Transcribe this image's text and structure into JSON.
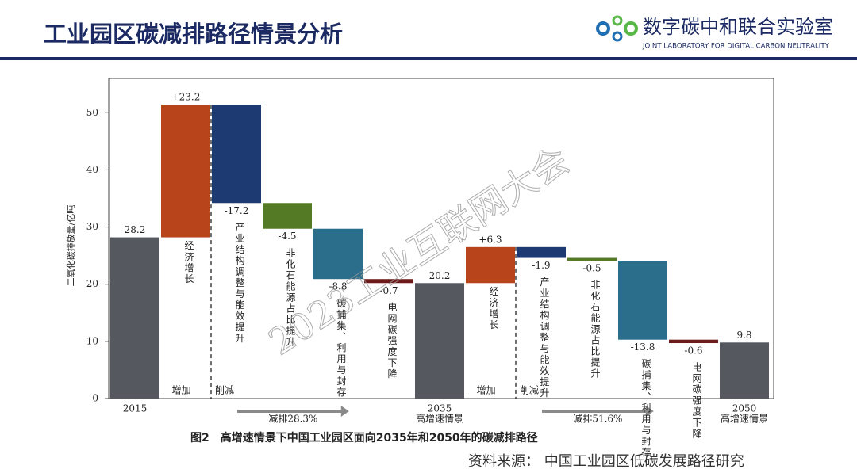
{
  "header": {
    "title": "工业园区碳减排路径情景分析",
    "logo_name": "数字碳中和联合实验室",
    "logo_subtitle": "JOINT LABORATORY FOR DIGITAL CARBON NEUTRALITY"
  },
  "chart_data": {
    "type": "waterfall",
    "y_label": "二氧化碳排放量/亿吨",
    "categories": [
      "2015",
      "经济增长",
      "产业结构调整与能效提升",
      "非化石能源占比提升",
      "碳捕集、利用与封存",
      "电网碳强度下降",
      "2035",
      "经济增长",
      "产业结构调整与能效提升",
      "非化石能源占比提升",
      "碳捕集、利用与封存",
      "电网碳强度下降",
      "2050"
    ],
    "measure": [
      "total",
      "relative",
      "relative",
      "relative",
      "relative",
      "relative",
      "total",
      "relative",
      "relative",
      "relative",
      "relative",
      "relative",
      "total"
    ],
    "values": [
      28.2,
      23.2,
      -17.2,
      -4.5,
      -8.8,
      -0.7,
      20.2,
      6.3,
      -1.9,
      -0.5,
      -13.8,
      -0.6,
      9.8
    ],
    "value_labels": [
      "28.2",
      "+23.2",
      "-17.2",
      "-4.5",
      "-8.8",
      "-0.7",
      "20.2",
      "+6.3",
      "-1.9",
      "-0.5",
      "-13.8",
      "-0.6",
      "9.8"
    ],
    "colors": [
      "#55585e",
      "#b8441b",
      "#1d3a72",
      "#557a25",
      "#2a6e8c",
      "#6d1a1a",
      "#55585e",
      "#b8441b",
      "#1d3a72",
      "#557a25",
      "#2a6e8c",
      "#6d1a1a",
      "#55585e"
    ],
    "ylim": [
      0,
      56
    ],
    "yticks": [
      0,
      10,
      20,
      30,
      40,
      50
    ],
    "scenario_labels": [
      "高增速情景",
      "高增速情景"
    ],
    "increase_label": "增加",
    "decrease_label": "削减",
    "reductions": [
      "减排28.3%",
      "减排51.6%"
    ],
    "watermark": "2023工业互联网大会"
  },
  "caption": "图2　高增速情景下中国工业园区面向2035年和2050年的碳减排路径",
  "source": "资料来源： 中国工业园区低碳发展路径研究"
}
